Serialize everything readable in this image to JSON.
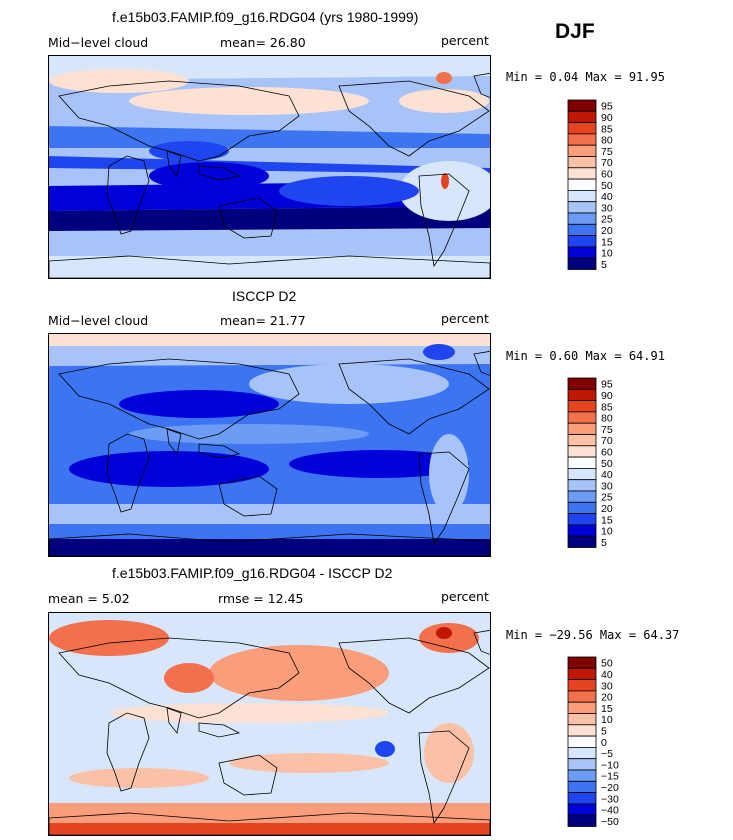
{
  "season": "DJF",
  "colors": {
    "abs_scale": [
      "#00007f",
      "#0000d9",
      "#1f45f0",
      "#3d74f2",
      "#6d9cf5",
      "#a7c3f7",
      "#d8e6fb",
      "#fbfcff",
      "#fde1d2",
      "#fbc1a6",
      "#f99d7a",
      "#f2704c",
      "#e6431f",
      "#c01604",
      "#7f0000"
    ],
    "diff_scale": [
      "#00007f",
      "#0000d9",
      "#1f45f0",
      "#3d74f2",
      "#6d9cf5",
      "#a7c3f7",
      "#d8e6fb",
      "#fbfcff",
      "#fde1d2",
      "#fbc1a6",
      "#f99d7a",
      "#f2704c",
      "#e6431f",
      "#c01604",
      "#7f0000"
    ],
    "coast": "#000000"
  },
  "panels": [
    {
      "title": "f.e15b03.FAMIP.f09_g16.RDG04 (yrs 1980-1999)",
      "left_label": "Mid−level cloud",
      "mean_label": "mean=  26.80",
      "units": "percent",
      "minmax": "Min =   0.04 Max =  91.95"
    },
    {
      "title": "ISCCP D2",
      "left_label": "Mid−level cloud",
      "mean_label": "mean=  21.77",
      "units": "percent",
      "minmax": "Min =   0.60 Max =  64.91"
    },
    {
      "title": "f.e15b03.FAMIP.f09_g16.RDG04 - ISCCP D2",
      "left_label": "mean =    5.02",
      "mean_label": "rmse =   12.45",
      "units": "percent",
      "minmax": "Min = −29.56 Max =  64.37"
    }
  ],
  "chart_data": [
    {
      "type": "heatmap",
      "title": "f.e15b03.FAMIP.f09_g16.RDG04 (yrs 1980-1999)",
      "variable": "Mid−level cloud",
      "units": "percent",
      "season": "DJF",
      "mean": 26.8,
      "min": 0.04,
      "max": 91.95,
      "contour_levels": [
        5,
        10,
        15,
        20,
        25,
        30,
        40,
        50,
        60,
        70,
        75,
        80,
        85,
        90,
        95
      ],
      "colorbar_labels": [
        "95",
        "90",
        "85",
        "80",
        "75",
        "70",
        "60",
        "50",
        "40",
        "30",
        "25",
        "20",
        "15",
        "10",
        "5"
      ]
    },
    {
      "type": "heatmap",
      "title": "ISCCP D2",
      "variable": "Mid−level cloud",
      "units": "percent",
      "season": "DJF",
      "mean": 21.77,
      "min": 0.6,
      "max": 64.91,
      "contour_levels": [
        5,
        10,
        15,
        20,
        25,
        30,
        40,
        50,
        60,
        70,
        75,
        80,
        85,
        90,
        95
      ],
      "colorbar_labels": [
        "95",
        "90",
        "85",
        "80",
        "75",
        "70",
        "60",
        "50",
        "40",
        "30",
        "25",
        "20",
        "15",
        "10",
        "5"
      ]
    },
    {
      "type": "heatmap",
      "title": "f.e15b03.FAMIP.f09_g16.RDG04 - ISCCP D2",
      "units": "percent",
      "season": "DJF",
      "mean": 5.02,
      "rmse": 12.45,
      "min": -29.56,
      "max": 64.37,
      "contour_levels": [
        -50,
        -40,
        -30,
        -20,
        -15,
        -10,
        -5,
        0,
        5,
        10,
        15,
        20,
        30,
        40,
        50
      ],
      "colorbar_labels": [
        "50",
        "40",
        "30",
        "20",
        "15",
        "10",
        "5",
        "0",
        "−5",
        "−10",
        "−15",
        "−20",
        "−30",
        "−40",
        "−50"
      ]
    }
  ]
}
